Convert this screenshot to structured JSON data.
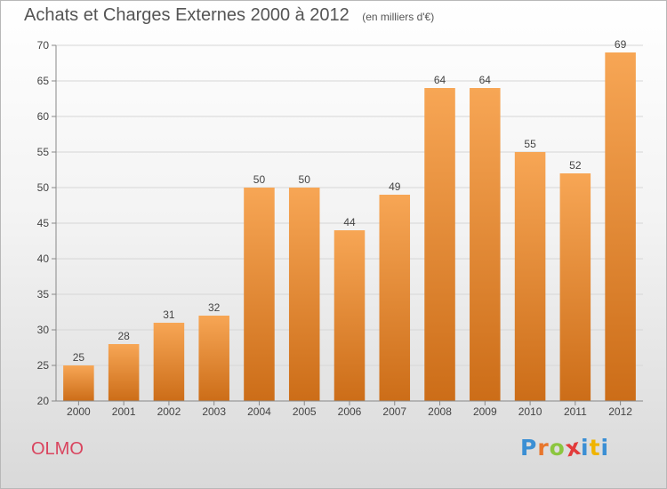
{
  "title": "Achats et Charges Externes 2000 à 2012",
  "unit_note": "(en milliers d'€)",
  "commune": "OLMO",
  "brand": {
    "letters": [
      "P",
      "r",
      "o",
      "x",
      "i",
      "t",
      "i"
    ],
    "colors": [
      "#3b8fd4",
      "#e8762c",
      "#8cc63f",
      "#e23b3b",
      "#3b8fd4",
      "#f0b400",
      "#3b8fd4"
    ]
  },
  "colors": {
    "bar_top": "#f7a655",
    "bar_bottom": "#cc6d18",
    "grid": "#d6d6d6",
    "axis": "#888888"
  },
  "chart_data": {
    "type": "bar",
    "title": "Achats et Charges Externes 2000 à 2012",
    "subtitle": "(en milliers d'€)",
    "categories": [
      "2000",
      "2001",
      "2002",
      "2003",
      "2004",
      "2005",
      "2006",
      "2007",
      "2008",
      "2009",
      "2010",
      "2011",
      "2012"
    ],
    "values": [
      25,
      28,
      31,
      32,
      50,
      50,
      44,
      49,
      64,
      64,
      55,
      52,
      69
    ],
    "xlabel": "",
    "ylabel": "",
    "ylim": [
      20,
      70
    ],
    "yticks": [
      20,
      25,
      30,
      35,
      40,
      45,
      50,
      55,
      60,
      65,
      70
    ],
    "grid": true,
    "legend": "none"
  }
}
